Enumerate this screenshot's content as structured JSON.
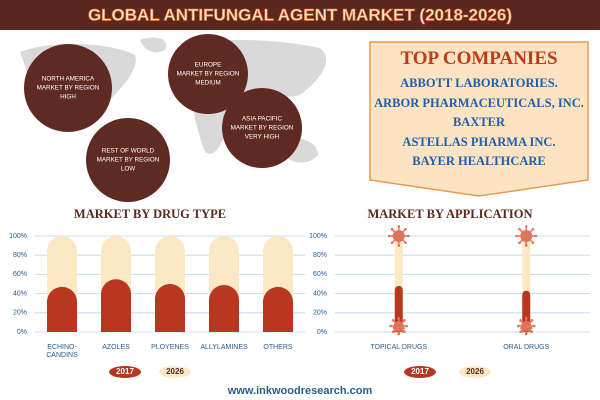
{
  "title": "GLOBAL ANTIFUNGAL AGENT MARKET (2018-2026)",
  "regions": [
    {
      "lines": [
        "NORTH AMERICA",
        "MARKET BY REGION",
        "HIGH"
      ]
    },
    {
      "lines": [
        "EUROPE",
        "MARKET BY REGION",
        "MEDIUM"
      ]
    },
    {
      "lines": [
        "ASIA PACIFIC",
        "MARKET BY REGION",
        "VERY HIGH"
      ]
    },
    {
      "lines": [
        "REST OF WORLD",
        "MARKET BY REGION",
        "LOW"
      ]
    }
  ],
  "top_companies": {
    "title": "TOP COMPANIES",
    "items": [
      "ABBOTT LABORATORIES.",
      "ARBOR PHARMACEUTICALS, INC.",
      "BAXTER",
      "ASTELLAS PHARMA INC.",
      "BAYER HEALTHCARE"
    ]
  },
  "chart_data": [
    {
      "type": "bar",
      "title": "MARKET BY DRUG TYPE",
      "categories": [
        "ECHINO-CANDINS",
        "AZOLES",
        "PLOYENES",
        "ALLYLAMINES",
        "OTHERS"
      ],
      "series": [
        {
          "name": "2026",
          "color": "#fde8c6",
          "values": [
            100,
            100,
            100,
            100,
            100
          ]
        },
        {
          "name": "2017",
          "color": "#b8371f",
          "values": [
            47,
            55,
            50,
            49,
            47
          ]
        }
      ],
      "ylim": [
        0,
        100
      ],
      "yticks": [
        {
          "value": 0,
          "label": "0%"
        },
        {
          "value": 20,
          "label": "20%"
        },
        {
          "value": 40,
          "label": "40%"
        },
        {
          "value": 60,
          "label": "60%"
        },
        {
          "value": 80,
          "label": "80%"
        },
        {
          "value": 100,
          "label": "100%"
        }
      ],
      "grid": true
    },
    {
      "type": "bar",
      "title": "MARKET BY APPLICATION",
      "categories": [
        "TOPICAL DRUGS",
        "ORAL DRUGS"
      ],
      "series": [
        {
          "name": "2026",
          "color": "#fde8c6",
          "values": [
            100,
            100
          ]
        },
        {
          "name": "2017",
          "color": "#b8371f",
          "values": [
            48,
            43
          ]
        }
      ],
      "ylim": [
        0,
        100
      ],
      "yticks": [
        {
          "value": 0,
          "label": "0%"
        },
        {
          "value": 20,
          "label": "20%"
        },
        {
          "value": 40,
          "label": "40%"
        },
        {
          "value": 60,
          "label": "60%"
        },
        {
          "value": 80,
          "label": "80%"
        },
        {
          "value": 100,
          "label": "100%"
        }
      ],
      "grid": true
    }
  ],
  "footer": "www.inkwoodresearch.com"
}
